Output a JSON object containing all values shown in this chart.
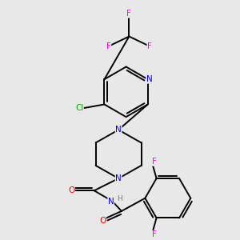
{
  "background_color": "#e8e8e8",
  "bond_color": "#000000",
  "atom_colors": {
    "N": "#0000ff",
    "O": "#ff0000",
    "F": "#ff00ff",
    "Cl": "#00aa00",
    "H": "#777777",
    "C": "#000000"
  },
  "figsize": [
    3.0,
    3.0
  ],
  "dpi": 100,
  "lw": 1.4
}
